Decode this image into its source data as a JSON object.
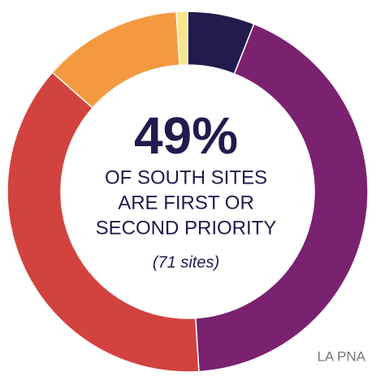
{
  "chart_data": {
    "type": "donut",
    "values": [
      6,
      43,
      37.5,
      12.5,
      1
    ],
    "colors": [
      "#231a4d",
      "#7a2270",
      "#d2433f",
      "#f39a40",
      "#f6e58a"
    ],
    "headline": "49%",
    "caption_lines": [
      "OF SOUTH SITES",
      "ARE FIRST OR",
      "SECOND PRIORITY"
    ],
    "note": "(71 sites)",
    "source": "LA PNA"
  }
}
